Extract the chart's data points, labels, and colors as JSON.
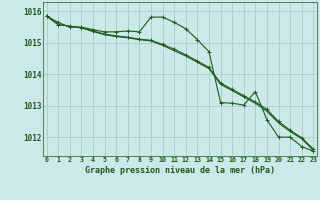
{
  "title": "Graphe pression niveau de la mer (hPa)",
  "bg_color": "#cce8e8",
  "grid_color": "#aacccc",
  "line_color": "#1a5c1a",
  "x_ticks": [
    0,
    1,
    2,
    3,
    4,
    5,
    6,
    7,
    8,
    9,
    10,
    11,
    12,
    13,
    14,
    15,
    16,
    17,
    18,
    19,
    20,
    21,
    22,
    23
  ],
  "ylim": [
    1011.4,
    1016.3
  ],
  "yticks": [
    1012,
    1013,
    1014,
    1015,
    1016
  ],
  "series1": [
    1015.85,
    1015.65,
    1015.5,
    1015.5,
    1015.42,
    1015.35,
    1015.35,
    1015.38,
    1015.35,
    1015.82,
    1015.82,
    1015.65,
    1015.45,
    1015.1,
    1014.72,
    1013.1,
    1013.08,
    1013.02,
    1013.45,
    1012.55,
    1012.0,
    1012.0,
    1011.7,
    1011.55
  ],
  "series2": [
    1015.85,
    1015.58,
    1015.53,
    1015.48,
    1015.38,
    1015.28,
    1015.22,
    1015.18,
    1015.12,
    1015.08,
    1014.95,
    1014.8,
    1014.62,
    1014.42,
    1014.22,
    1013.72,
    1013.52,
    1013.32,
    1013.12,
    1012.88,
    1012.5,
    1012.22,
    1011.98,
    1011.62
  ],
  "series3": [
    1015.85,
    1015.58,
    1015.53,
    1015.48,
    1015.36,
    1015.26,
    1015.2,
    1015.16,
    1015.1,
    1015.06,
    1014.92,
    1014.75,
    1014.58,
    1014.38,
    1014.18,
    1013.68,
    1013.48,
    1013.28,
    1013.08,
    1012.82,
    1012.45,
    1012.18,
    1011.95,
    1011.58
  ]
}
